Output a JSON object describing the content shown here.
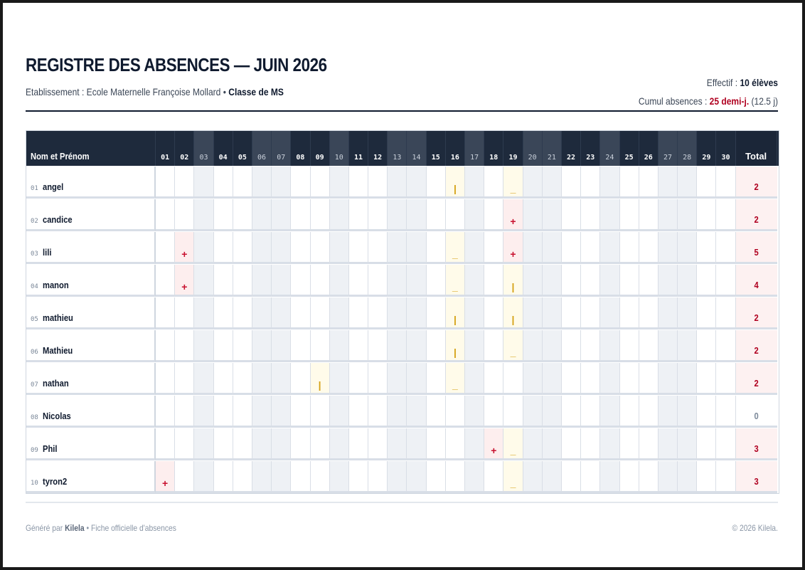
{
  "header": {
    "title": "REGISTRE DES ABSENCES — JUIN 2026",
    "school_label": "Etablissement : ",
    "school_name": "Ecole Maternelle Françoise Mollard",
    "separator": " • ",
    "class_name": "Classe de MS",
    "effectif_label": "Effectif : ",
    "effectif_value": "10 élèves",
    "cumul_label": "Cumul absences : ",
    "cumul_value": "25 demi-j.",
    "cumul_days": " (12.5 j)"
  },
  "table": {
    "name_header": "Nom et Prénom",
    "total_header": "Total",
    "days": [
      {
        "label": "01",
        "weekend": false
      },
      {
        "label": "02",
        "weekend": false
      },
      {
        "label": "03",
        "weekend": true
      },
      {
        "label": "04",
        "weekend": false
      },
      {
        "label": "05",
        "weekend": false
      },
      {
        "label": "06",
        "weekend": true
      },
      {
        "label": "07",
        "weekend": true
      },
      {
        "label": "08",
        "weekend": false
      },
      {
        "label": "09",
        "weekend": false
      },
      {
        "label": "10",
        "weekend": true
      },
      {
        "label": "11",
        "weekend": false
      },
      {
        "label": "12",
        "weekend": false
      },
      {
        "label": "13",
        "weekend": true
      },
      {
        "label": "14",
        "weekend": true
      },
      {
        "label": "15",
        "weekend": false
      },
      {
        "label": "16",
        "weekend": false
      },
      {
        "label": "17",
        "weekend": true
      },
      {
        "label": "18",
        "weekend": false
      },
      {
        "label": "19",
        "weekend": false
      },
      {
        "label": "20",
        "weekend": true
      },
      {
        "label": "21",
        "weekend": true
      },
      {
        "label": "22",
        "weekend": false
      },
      {
        "label": "23",
        "weekend": false
      },
      {
        "label": "24",
        "weekend": true
      },
      {
        "label": "25",
        "weekend": false
      },
      {
        "label": "26",
        "weekend": false
      },
      {
        "label": "27",
        "weekend": true
      },
      {
        "label": "28",
        "weekend": true
      },
      {
        "label": "29",
        "weekend": false
      },
      {
        "label": "30",
        "weekend": false
      }
    ],
    "legend_marks": {
      "plus": "+",
      "bar": "|",
      "dash": "_"
    },
    "students": [
      {
        "num": "01",
        "name": "angel",
        "total": "2",
        "marks": {
          "16": "bar",
          "19": "dash"
        }
      },
      {
        "num": "02",
        "name": "candice",
        "total": "2",
        "marks": {
          "19": "plus"
        }
      },
      {
        "num": "03",
        "name": "lili",
        "total": "5",
        "marks": {
          "02": "plus",
          "16": "dash",
          "19": "plus"
        }
      },
      {
        "num": "04",
        "name": "manon",
        "total": "4",
        "marks": {
          "02": "plus",
          "16": "dash",
          "19": "bar"
        }
      },
      {
        "num": "05",
        "name": "mathieu",
        "total": "2",
        "marks": {
          "16": "bar",
          "19": "bar"
        }
      },
      {
        "num": "06",
        "name": "Mathieu",
        "total": "2",
        "marks": {
          "16": "bar",
          "19": "dash"
        }
      },
      {
        "num": "07",
        "name": "nathan",
        "total": "2",
        "marks": {
          "09": "bar",
          "16": "dash"
        }
      },
      {
        "num": "08",
        "name": "Nicolas",
        "total": "0",
        "marks": {}
      },
      {
        "num": "09",
        "name": "Phil",
        "total": "3",
        "marks": {
          "18": "plus",
          "19": "dash"
        }
      },
      {
        "num": "10",
        "name": "tyron2",
        "total": "3",
        "marks": {
          "01": "plus",
          "19": "dash"
        }
      }
    ]
  },
  "footer": {
    "generated_prefix": "Généré par ",
    "brand": "Kilela",
    "generated_suffix": " • Fiche officielle d'absences",
    "copyright": "© 2026 Kilela."
  }
}
